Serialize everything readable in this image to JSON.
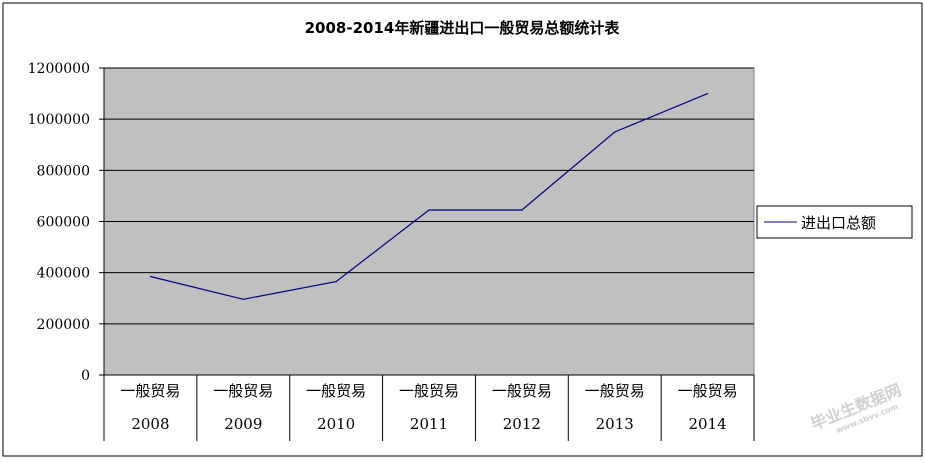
{
  "chart_data": {
    "type": "line",
    "title": "2008-2014年新疆进出口一般贸易总额统计表",
    "categories": [
      {
        "group": "一般贸易",
        "year": "2008"
      },
      {
        "group": "一般贸易",
        "year": "2009"
      },
      {
        "group": "一般贸易",
        "year": "2010"
      },
      {
        "group": "一般贸易",
        "year": "2011"
      },
      {
        "group": "一般贸易",
        "year": "2012"
      },
      {
        "group": "一般贸易",
        "year": "2013"
      },
      {
        "group": "一般贸易",
        "year": "2014"
      }
    ],
    "series": [
      {
        "name": "进出口总额",
        "values": [
          385000,
          296000,
          365000,
          645000,
          645000,
          950000,
          1100000
        ],
        "color": "#000080"
      }
    ],
    "ylim": [
      0,
      1200000
    ],
    "yticks": [
      "0",
      "200000",
      "400000",
      "600000",
      "800000",
      "1000000",
      "1200000"
    ],
    "grid": true,
    "legend_position": "right",
    "plot_background": "#c0c0c0"
  },
  "watermark": {
    "line1": "毕业生数据网",
    "line2": "www.sbvv.com"
  }
}
